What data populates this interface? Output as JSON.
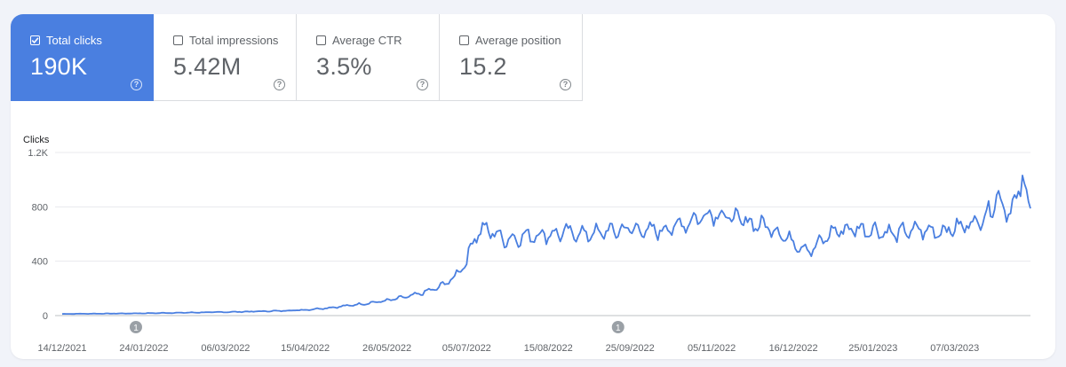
{
  "metrics": [
    {
      "label": "Total clicks",
      "value": "190K",
      "selected": true
    },
    {
      "label": "Total impressions",
      "value": "5.42M",
      "selected": false
    },
    {
      "label": "Average CTR",
      "value": "3.5%",
      "selected": false
    },
    {
      "label": "Average position",
      "value": "15.2",
      "selected": false
    }
  ],
  "help_glyph": "?",
  "colors": {
    "accent": "#4a7fe0",
    "line": "#4a7fe0",
    "grid": "#e8eaed",
    "annotation": "#9aa0a6"
  },
  "chart_data": {
    "type": "line",
    "ylabel": "Clicks",
    "ylim": [
      0,
      1200
    ],
    "yticks": [
      {
        "value": 0,
        "label": "0"
      },
      {
        "value": 400,
        "label": "400"
      },
      {
        "value": 800,
        "label": "800"
      },
      {
        "value": 1200,
        "label": "1.2K"
      }
    ],
    "xlim": [
      "2021-12-14",
      "2023-04-14"
    ],
    "xticks": [
      "14/12/2021",
      "24/01/2022",
      "06/03/2022",
      "15/04/2022",
      "26/05/2022",
      "05/07/2022",
      "15/08/2022",
      "25/09/2022",
      "05/11/2022",
      "16/12/2022",
      "25/01/2023",
      "07/03/2023"
    ],
    "grid": true,
    "annotations": [
      {
        "date": "2022-01-20",
        "label": "1"
      },
      {
        "date": "2022-09-19",
        "label": "1"
      }
    ],
    "series": [
      {
        "points": [
          [
            "2021-12-14",
            12
          ],
          [
            "2021-12-28",
            14
          ],
          [
            "2022-01-10",
            15
          ],
          [
            "2022-01-24",
            17
          ],
          [
            "2022-02-07",
            20
          ],
          [
            "2022-02-21",
            23
          ],
          [
            "2022-03-06",
            26
          ],
          [
            "2022-03-20",
            30
          ],
          [
            "2022-04-03",
            35
          ],
          [
            "2022-04-15",
            42
          ],
          [
            "2022-04-29",
            60
          ],
          [
            "2022-05-13",
            85
          ],
          [
            "2022-05-26",
            110
          ],
          [
            "2022-06-09",
            150
          ],
          [
            "2022-06-20",
            200
          ],
          [
            "2022-06-28",
            270
          ],
          [
            "2022-07-05",
            400
          ],
          [
            "2022-07-09",
            590
          ],
          [
            "2022-07-14",
            640
          ],
          [
            "2022-07-25",
            560
          ],
          [
            "2022-08-06",
            590
          ],
          [
            "2022-08-15",
            600
          ],
          [
            "2022-08-25",
            610
          ],
          [
            "2022-09-05",
            600
          ],
          [
            "2022-09-15",
            620
          ],
          [
            "2022-09-25",
            640
          ],
          [
            "2022-10-06",
            620
          ],
          [
            "2022-10-17",
            650
          ],
          [
            "2022-10-26",
            700
          ],
          [
            "2022-11-05",
            760
          ],
          [
            "2022-11-15",
            720
          ],
          [
            "2022-11-25",
            680
          ],
          [
            "2022-12-05",
            650
          ],
          [
            "2022-12-16",
            540
          ],
          [
            "2022-12-25",
            480
          ],
          [
            "2023-01-05",
            620
          ],
          [
            "2023-01-15",
            640
          ],
          [
            "2023-01-25",
            630
          ],
          [
            "2023-02-05",
            600
          ],
          [
            "2023-02-15",
            630
          ],
          [
            "2023-02-25",
            620
          ],
          [
            "2023-03-07",
            640
          ],
          [
            "2023-03-15",
            680
          ],
          [
            "2023-03-22",
            720
          ],
          [
            "2023-03-28",
            880
          ],
          [
            "2023-04-02",
            780
          ],
          [
            "2023-04-07",
            820
          ],
          [
            "2023-04-10",
            1040
          ],
          [
            "2023-04-12",
            860
          ],
          [
            "2023-04-14",
            800
          ]
        ]
      }
    ]
  }
}
